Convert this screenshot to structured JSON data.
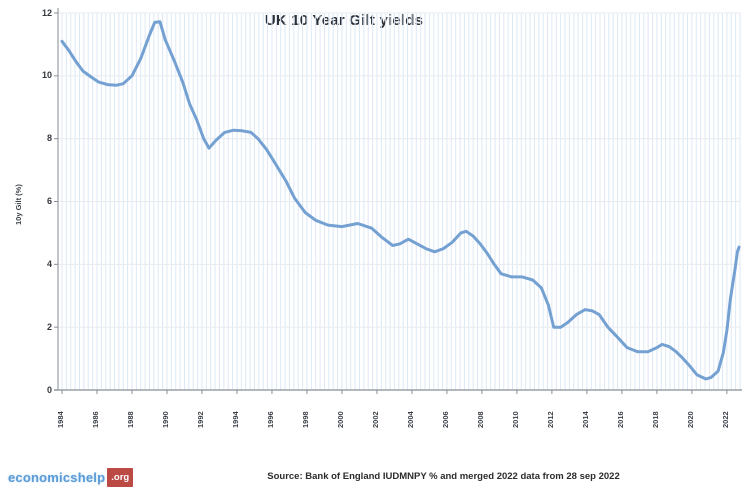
{
  "chart": {
    "title": "UK 10 Year Gilt yields",
    "source_caption": "Source: Bank of England IUDMNPY % and merged 2022 data from 28 sep 2022",
    "logo": {
      "name": "economicshelp",
      "suffix": ".org",
      "name_color": "#5a9bd5",
      "box_color": "#bb4a45"
    }
  },
  "chart_data": {
    "type": "line",
    "title": "UK 10 Year Gilt yields",
    "xlabel": "",
    "ylabel": "10y Gilt (%)",
    "ylim": [
      0,
      12
    ],
    "y_ticks": [
      0,
      2,
      4,
      6,
      8,
      10,
      12
    ],
    "x_range": [
      1984,
      2022.75
    ],
    "x_ticks": [
      1984,
      1986,
      1988,
      1990,
      1992,
      1994,
      1996,
      1998,
      2000,
      2002,
      2004,
      2006,
      2008,
      2010,
      2012,
      2014,
      2016,
      2018,
      2020,
      2022
    ],
    "grid": {
      "vertical_step_years": 0.25,
      "v_color": "#dde8f5",
      "h_color": "#e7ebf1"
    },
    "axis_color": "#9aa0a6",
    "tick_color": "#8a8f94",
    "legend": null,
    "series": [
      {
        "name": "UK 10 year gilt yield (%)",
        "color": "#74a1d2",
        "points": [
          [
            1984.0,
            11.1
          ],
          [
            1984.4,
            10.8
          ],
          [
            1984.8,
            10.45
          ],
          [
            1985.2,
            10.15
          ],
          [
            1985.7,
            9.95
          ],
          [
            1986.1,
            9.8
          ],
          [
            1986.6,
            9.72
          ],
          [
            1987.1,
            9.7
          ],
          [
            1987.5,
            9.75
          ],
          [
            1988.0,
            10.0
          ],
          [
            1988.5,
            10.55
          ],
          [
            1989.0,
            11.3
          ],
          [
            1989.3,
            11.7
          ],
          [
            1989.6,
            11.72
          ],
          [
            1989.9,
            11.15
          ],
          [
            1990.4,
            10.5
          ],
          [
            1990.9,
            9.8
          ],
          [
            1991.3,
            9.1
          ],
          [
            1991.7,
            8.6
          ],
          [
            1992.1,
            8.0
          ],
          [
            1992.4,
            7.7
          ],
          [
            1992.8,
            7.95
          ],
          [
            1993.3,
            8.2
          ],
          [
            1993.8,
            8.27
          ],
          [
            1994.3,
            8.25
          ],
          [
            1994.8,
            8.2
          ],
          [
            1995.2,
            8.0
          ],
          [
            1995.7,
            7.65
          ],
          [
            1996.2,
            7.2
          ],
          [
            1996.8,
            6.65
          ],
          [
            1997.3,
            6.1
          ],
          [
            1997.9,
            5.65
          ],
          [
            1998.5,
            5.4
          ],
          [
            1999.2,
            5.25
          ],
          [
            2000.0,
            5.2
          ],
          [
            2000.9,
            5.3
          ],
          [
            2001.7,
            5.15
          ],
          [
            2002.3,
            4.85
          ],
          [
            2002.9,
            4.6
          ],
          [
            2003.3,
            4.65
          ],
          [
            2003.8,
            4.8
          ],
          [
            2004.3,
            4.65
          ],
          [
            2004.8,
            4.5
          ],
          [
            2005.3,
            4.4
          ],
          [
            2005.8,
            4.5
          ],
          [
            2006.3,
            4.7
          ],
          [
            2006.8,
            5.0
          ],
          [
            2007.1,
            5.05
          ],
          [
            2007.5,
            4.9
          ],
          [
            2007.9,
            4.65
          ],
          [
            2008.3,
            4.35
          ],
          [
            2008.7,
            4.0
          ],
          [
            2009.1,
            3.7
          ],
          [
            2009.7,
            3.6
          ],
          [
            2010.3,
            3.6
          ],
          [
            2010.9,
            3.5
          ],
          [
            2011.4,
            3.25
          ],
          [
            2011.8,
            2.7
          ],
          [
            2012.1,
            2.0
          ],
          [
            2012.5,
            2.0
          ],
          [
            2012.9,
            2.15
          ],
          [
            2013.4,
            2.4
          ],
          [
            2013.9,
            2.56
          ],
          [
            2014.3,
            2.52
          ],
          [
            2014.7,
            2.4
          ],
          [
            2015.2,
            2.0
          ],
          [
            2015.8,
            1.65
          ],
          [
            2016.3,
            1.35
          ],
          [
            2016.9,
            1.22
          ],
          [
            2017.5,
            1.22
          ],
          [
            2018.0,
            1.35
          ],
          [
            2018.3,
            1.45
          ],
          [
            2018.7,
            1.38
          ],
          [
            2019.1,
            1.22
          ],
          [
            2019.5,
            1.0
          ],
          [
            2019.9,
            0.75
          ],
          [
            2020.3,
            0.48
          ],
          [
            2020.8,
            0.35
          ],
          [
            2021.1,
            0.4
          ],
          [
            2021.5,
            0.6
          ],
          [
            2021.8,
            1.2
          ],
          [
            2022.0,
            1.9
          ],
          [
            2022.2,
            2.9
          ],
          [
            2022.45,
            3.8
          ],
          [
            2022.6,
            4.4
          ],
          [
            2022.7,
            4.55
          ]
        ]
      }
    ]
  }
}
